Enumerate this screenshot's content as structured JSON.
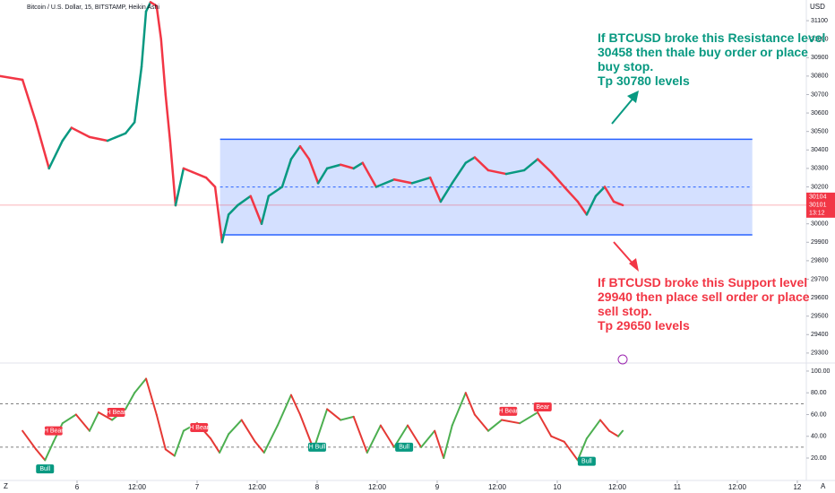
{
  "chart_data": {
    "type": "line",
    "title": "Bitcoin / U.S. Dollar, 15, BITSTAMP, Heikin Ashi",
    "y_axis_label": "USD",
    "xlim": [
      -15.4,
      145.8
    ],
    "xticks": [
      {
        "value": 0,
        "label": "6"
      },
      {
        "value": 12,
        "label": "12:00"
      },
      {
        "value": 24,
        "label": "7"
      },
      {
        "value": 36,
        "label": "12:00"
      },
      {
        "value": 48,
        "label": "8"
      },
      {
        "value": 60,
        "label": "12:00"
      },
      {
        "value": 72,
        "label": "9"
      },
      {
        "value": 84,
        "label": "12:00"
      },
      {
        "value": 96,
        "label": "10"
      },
      {
        "value": 108,
        "label": "12:00"
      },
      {
        "value": 120,
        "label": "11"
      },
      {
        "value": 132,
        "label": "12:00"
      },
      {
        "value": 144,
        "label": "12"
      }
    ],
    "ylim": [
      29246,
      31212
    ],
    "yticks": [
      29300,
      29400,
      29500,
      29600,
      29700,
      29800,
      29900,
      30000,
      30200,
      30300,
      30400,
      30500,
      30600,
      30700,
      30800,
      30900,
      31000,
      31100
    ],
    "grid": false,
    "up_color": "#089981",
    "down_color": "#f23645",
    "x": [
      -15.4,
      -10.9,
      -8.2,
      -5.6,
      -2.9,
      -1.1,
      2.5,
      6.1,
      9.7,
      11.5,
      12.9,
      13.8,
      14.7,
      15.9,
      16.8,
      17.7,
      18.6,
      19.7,
      21.3,
      23.1,
      25.8,
      27.6,
      29.0,
      30.3,
      32.1,
      34.7,
      36.9,
      38.3,
      41.0,
      42.8,
      44.6,
      46.4,
      48.2,
      50.0,
      52.7,
      55.3,
      57.1,
      59.8,
      63.4,
      67.0,
      70.6,
      72.7,
      75.0,
      77.7,
      79.5,
      82.2,
      85.8,
      89.4,
      92.1,
      94.8,
      97.4,
      100.1,
      101.9,
      103.7,
      105.5,
      107.3,
      109.1
    ],
    "series": [
      {
        "values": [
          30800,
          30780,
          30550,
          30300,
          30450,
          30520,
          30470,
          30450,
          30490,
          30550,
          30850,
          31150,
          31200,
          31180,
          31000,
          30700,
          30450,
          30100,
          30300,
          30280,
          30250,
          30200,
          29900,
          30050,
          30100,
          30150,
          30000,
          30150,
          30200,
          30350,
          30420,
          30350,
          30220,
          30300,
          30320,
          30300,
          30330,
          30200,
          30240,
          30220,
          30250,
          30120,
          30220,
          30330,
          30360,
          30290,
          30270,
          30290,
          30350,
          30280,
          30200,
          30120,
          30050,
          30150,
          30200,
          30120,
          30101
        ]
      }
    ],
    "zone": {
      "resistance": 30458,
      "support": 29940,
      "x_start": 28.6,
      "x_end": 135.0,
      "color": "#2962ff"
    },
    "last_price": {
      "value": 30101,
      "labels": [
        "30104",
        "30101",
        "13:12"
      ]
    },
    "annotations": [
      {
        "lines": [
          "If BTCUSD broke this Resistance level",
          "30458 then thale buy order or place",
          "buy stop.",
          "Tp 30780 levels"
        ],
        "color": "#089981"
      },
      {
        "lines": [
          "If BTCUSD broke this Support level",
          "29940 then place sell order or place",
          "sell stop.",
          "Tp 29650 levels"
        ],
        "color": "#f23645"
      }
    ],
    "oscillator": {
      "ylim": [
        0.2,
        107.4
      ],
      "yticks": [
        {
          "value": 20,
          "label": "20.00"
        },
        {
          "value": 40,
          "label": "40.00"
        },
        {
          "value": 60,
          "label": "60.00"
        },
        {
          "value": 80,
          "label": "80.00"
        },
        {
          "value": 100,
          "label": "100.00"
        }
      ],
      "levels": [
        30,
        70
      ],
      "x": [
        -10.9,
        -8.2,
        -6.4,
        -4.7,
        -2.9,
        -0.2,
        2.5,
        4.3,
        7.0,
        9.7,
        11.5,
        13.8,
        15.9,
        17.7,
        19.5,
        21.3,
        24.0,
        26.7,
        28.5,
        30.3,
        32.9,
        35.6,
        37.4,
        40.1,
        42.8,
        44.6,
        47.3,
        50.0,
        52.7,
        55.3,
        58.0,
        60.7,
        63.4,
        66.1,
        68.8,
        71.5,
        73.3,
        75.0,
        77.7,
        79.5,
        82.2,
        84.9,
        88.5,
        92.1,
        94.8,
        97.4,
        100.1,
        101.9,
        104.6,
        106.4,
        108.2,
        109.1
      ],
      "values": [
        45,
        28,
        18,
        35,
        52,
        60,
        45,
        62,
        55,
        65,
        80,
        93,
        60,
        28,
        22,
        45,
        52,
        38,
        25,
        42,
        55,
        35,
        25,
        50,
        78,
        60,
        28,
        65,
        55,
        58,
        25,
        50,
        30,
        50,
        30,
        45,
        20,
        50,
        80,
        60,
        45,
        55,
        52,
        62,
        40,
        35,
        18,
        38,
        55,
        45,
        40,
        45
      ],
      "signals": [
        {
          "label": "H Bear",
          "x": -4.7,
          "value": 45,
          "color": "#f23645"
        },
        {
          "label": "Bull",
          "x": -6.4,
          "value": 10,
          "color": "#089981"
        },
        {
          "label": "H Bear",
          "x": 7.8,
          "value": 62,
          "color": "#f23645"
        },
        {
          "label": "H Bear",
          "x": 24.4,
          "value": 48,
          "color": "#f23645"
        },
        {
          "label": "H Bull",
          "x": 48.0,
          "value": 30,
          "color": "#089981"
        },
        {
          "label": "Bull",
          "x": 65.4,
          "value": 30,
          "color": "#089981"
        },
        {
          "label": "H Bear",
          "x": 86.2,
          "value": 63,
          "color": "#f23645"
        },
        {
          "label": "Bear",
          "x": 93.1,
          "value": 67,
          "color": "#f23645"
        },
        {
          "label": "Bull",
          "x": 101.9,
          "value": 17,
          "color": "#089981"
        }
      ]
    },
    "corner_labels": [
      "Z",
      "A"
    ]
  }
}
